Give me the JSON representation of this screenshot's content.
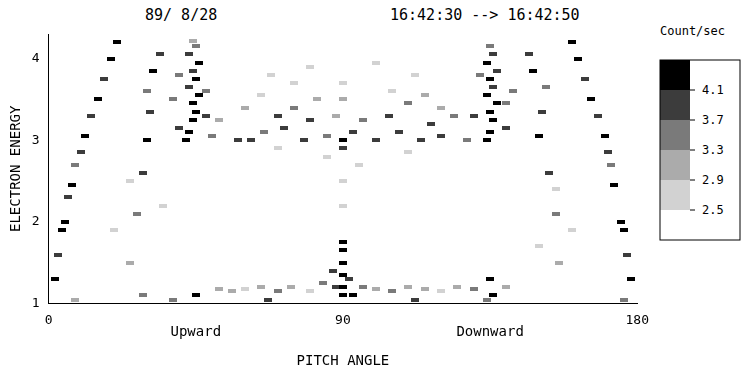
{
  "chart_data": {
    "type": "heatmap",
    "title": "89/ 8/28",
    "subtitle": "16:42:30 --> 16:42:50",
    "x_label": "PITCH ANGLE",
    "y_label": "ELECTRON ENERGY",
    "xlim": [
      0,
      180
    ],
    "xticks": [
      0,
      90,
      180
    ],
    "ylim": [
      1,
      4.3
    ],
    "yticks": [
      1,
      2,
      3,
      4
    ],
    "grid": false,
    "annotations": [
      {
        "text": "Upward",
        "x": 45
      },
      {
        "text": "Downward",
        "x": 135
      }
    ],
    "colorbar": {
      "title": "Count/sec",
      "ticks": [
        2.5,
        2.9,
        3.3,
        3.7,
        4.1
      ]
    },
    "cells": [
      [
        2,
        1.3,
        4.2
      ],
      [
        3,
        1.6,
        3.9
      ],
      [
        4,
        1.9,
        4.2
      ],
      [
        5,
        2.0,
        4.2
      ],
      [
        6,
        2.3,
        3.9
      ],
      [
        7,
        2.45,
        4.2
      ],
      [
        8,
        2.7,
        3.5
      ],
      [
        10,
        2.85,
        3.9
      ],
      [
        11,
        3.05,
        4.2
      ],
      [
        13,
        3.3,
        3.9
      ],
      [
        15,
        3.5,
        4.2
      ],
      [
        17,
        3.75,
        3.9
      ],
      [
        19,
        4.0,
        4.2
      ],
      [
        21,
        4.2,
        4.2
      ],
      [
        8,
        1.05,
        3.1
      ],
      [
        25,
        1.5,
        3.1
      ],
      [
        27,
        2.1,
        3.5
      ],
      [
        29,
        2.6,
        3.9
      ],
      [
        30,
        3.0,
        4.2
      ],
      [
        31,
        3.35,
        3.9
      ],
      [
        30,
        3.6,
        3.5
      ],
      [
        32,
        3.85,
        4.2
      ],
      [
        34,
        4.05,
        3.9
      ],
      [
        29,
        1.1,
        3.5
      ],
      [
        42,
        3.0,
        4.2
      ],
      [
        43,
        3.1,
        4.2
      ],
      [
        44,
        3.25,
        4.2
      ],
      [
        45,
        3.35,
        4.2
      ],
      [
        44,
        3.45,
        4.2
      ],
      [
        46,
        3.55,
        4.2
      ],
      [
        43,
        3.65,
        3.9
      ],
      [
        45,
        3.75,
        4.2
      ],
      [
        44,
        3.85,
        3.9
      ],
      [
        46,
        3.95,
        4.2
      ],
      [
        43,
        4.05,
        3.9
      ],
      [
        45,
        4.15,
        3.5
      ],
      [
        44,
        4.22,
        3.1
      ],
      [
        40,
        3.15,
        3.9
      ],
      [
        48,
        3.3,
        3.9
      ],
      [
        48,
        3.6,
        3.5
      ],
      [
        40,
        3.8,
        3.5
      ],
      [
        50,
        3.05,
        3.5
      ],
      [
        38,
        3.5,
        3.5
      ],
      [
        52,
        3.25,
        3.1
      ],
      [
        45,
        1.1,
        4.2
      ],
      [
        38,
        1.05,
        3.5
      ],
      [
        52,
        1.18,
        3.1
      ],
      [
        56,
        1.15,
        3.1
      ],
      [
        60,
        1.18,
        2.7
      ],
      [
        65,
        1.2,
        3.1
      ],
      [
        70,
        1.15,
        3.5
      ],
      [
        74,
        1.2,
        3.1
      ],
      [
        80,
        1.15,
        2.7
      ],
      [
        84,
        1.25,
        3.5
      ],
      [
        87,
        1.4,
        3.9
      ],
      [
        88,
        1.2,
        3.9
      ],
      [
        90,
        1.1,
        4.2
      ],
      [
        90,
        1.2,
        4.2
      ],
      [
        90,
        1.35,
        4.2
      ],
      [
        90,
        1.5,
        4.2
      ],
      [
        90,
        1.65,
        4.2
      ],
      [
        90,
        1.75,
        4.2
      ],
      [
        92,
        1.3,
        3.9
      ],
      [
        93,
        1.1,
        4.2
      ],
      [
        96,
        1.2,
        3.5
      ],
      [
        100,
        1.18,
        3.1
      ],
      [
        105,
        1.15,
        3.5
      ],
      [
        110,
        1.2,
        3.1
      ],
      [
        115,
        1.18,
        3.1
      ],
      [
        120,
        1.15,
        2.7
      ],
      [
        125,
        1.2,
        3.1
      ],
      [
        130,
        1.18,
        3.5
      ],
      [
        134,
        1.05,
        3.5
      ],
      [
        135,
        1.3,
        4.2
      ],
      [
        136,
        1.1,
        4.2
      ],
      [
        140,
        1.2,
        3.1
      ],
      [
        67,
        1.05,
        3.9
      ],
      [
        112,
        1.05,
        3.9
      ],
      [
        58,
        3.0,
        3.9
      ],
      [
        62,
        3.0,
        3.9
      ],
      [
        66,
        3.1,
        3.5
      ],
      [
        70,
        3.3,
        3.9
      ],
      [
        72,
        3.15,
        3.9
      ],
      [
        75,
        3.4,
        3.5
      ],
      [
        78,
        3.0,
        3.9
      ],
      [
        80,
        3.25,
        3.9
      ],
      [
        82,
        3.5,
        3.1
      ],
      [
        85,
        3.05,
        3.5
      ],
      [
        88,
        3.3,
        3.1
      ],
      [
        90,
        3.0,
        4.2
      ],
      [
        90,
        2.9,
        3.9
      ],
      [
        90,
        3.5,
        3.1
      ],
      [
        90,
        3.7,
        2.7
      ],
      [
        90,
        2.5,
        2.7
      ],
      [
        90,
        2.2,
        2.7
      ],
      [
        93,
        3.1,
        3.9
      ],
      [
        96,
        3.25,
        3.5
      ],
      [
        100,
        3.0,
        3.9
      ],
      [
        104,
        3.3,
        3.9
      ],
      [
        107,
        3.1,
        3.9
      ],
      [
        110,
        3.45,
        3.5
      ],
      [
        114,
        3.0,
        3.9
      ],
      [
        117,
        3.2,
        3.9
      ],
      [
        120,
        3.05,
        3.9
      ],
      [
        124,
        3.3,
        3.5
      ],
      [
        60,
        3.4,
        3.1
      ],
      [
        65,
        3.55,
        2.7
      ],
      [
        75,
        3.7,
        2.7
      ],
      [
        85,
        2.8,
        2.7
      ],
      [
        95,
        2.7,
        2.7
      ],
      [
        105,
        3.6,
        2.7
      ],
      [
        115,
        3.55,
        3.1
      ],
      [
        120,
        3.4,
        3.1
      ],
      [
        70,
        2.9,
        2.7
      ],
      [
        110,
        2.85,
        2.7
      ],
      [
        80,
        3.9,
        2.7
      ],
      [
        100,
        3.95,
        2.7
      ],
      [
        68,
        3.8,
        2.7
      ],
      [
        112,
        3.8,
        2.7
      ],
      [
        134,
        3.0,
        4.2
      ],
      [
        135,
        3.1,
        4.2
      ],
      [
        136,
        3.25,
        4.2
      ],
      [
        135,
        3.35,
        4.2
      ],
      [
        137,
        3.45,
        4.2
      ],
      [
        134,
        3.55,
        4.2
      ],
      [
        136,
        3.65,
        3.9
      ],
      [
        135,
        3.75,
        4.2
      ],
      [
        137,
        3.85,
        3.9
      ],
      [
        134,
        3.95,
        4.2
      ],
      [
        136,
        4.05,
        3.9
      ],
      [
        135,
        4.15,
        3.5
      ],
      [
        130,
        3.3,
        3.9
      ],
      [
        140,
        3.15,
        3.9
      ],
      [
        142,
        3.6,
        3.5
      ],
      [
        128,
        3.0,
        3.5
      ],
      [
        132,
        3.8,
        3.5
      ],
      [
        140,
        3.45,
        3.5
      ],
      [
        150,
        3.05,
        4.2
      ],
      [
        151,
        3.35,
        3.9
      ],
      [
        152,
        3.65,
        3.5
      ],
      [
        148,
        3.85,
        4.2
      ],
      [
        147,
        4.05,
        3.9
      ],
      [
        153,
        2.6,
        3.9
      ],
      [
        155,
        2.1,
        3.5
      ],
      [
        156,
        1.5,
        3.1
      ],
      [
        160,
        4.2,
        4.2
      ],
      [
        162,
        4.0,
        4.2
      ],
      [
        164,
        3.75,
        3.9
      ],
      [
        166,
        3.5,
        4.2
      ],
      [
        168,
        3.3,
        3.9
      ],
      [
        170,
        3.05,
        4.2
      ],
      [
        171,
        2.85,
        3.9
      ],
      [
        172,
        2.7,
        3.5
      ],
      [
        173,
        2.45,
        4.2
      ],
      [
        175,
        2.0,
        4.2
      ],
      [
        176,
        1.9,
        4.2
      ],
      [
        177,
        1.6,
        3.9
      ],
      [
        178,
        1.3,
        4.2
      ],
      [
        176,
        1.05,
        3.5
      ],
      [
        20,
        1.9,
        2.7
      ],
      [
        25,
        2.5,
        2.7
      ],
      [
        35,
        2.2,
        2.7
      ],
      [
        155,
        2.4,
        2.7
      ],
      [
        160,
        1.9,
        2.7
      ],
      [
        150,
        1.7,
        2.7
      ]
    ]
  }
}
